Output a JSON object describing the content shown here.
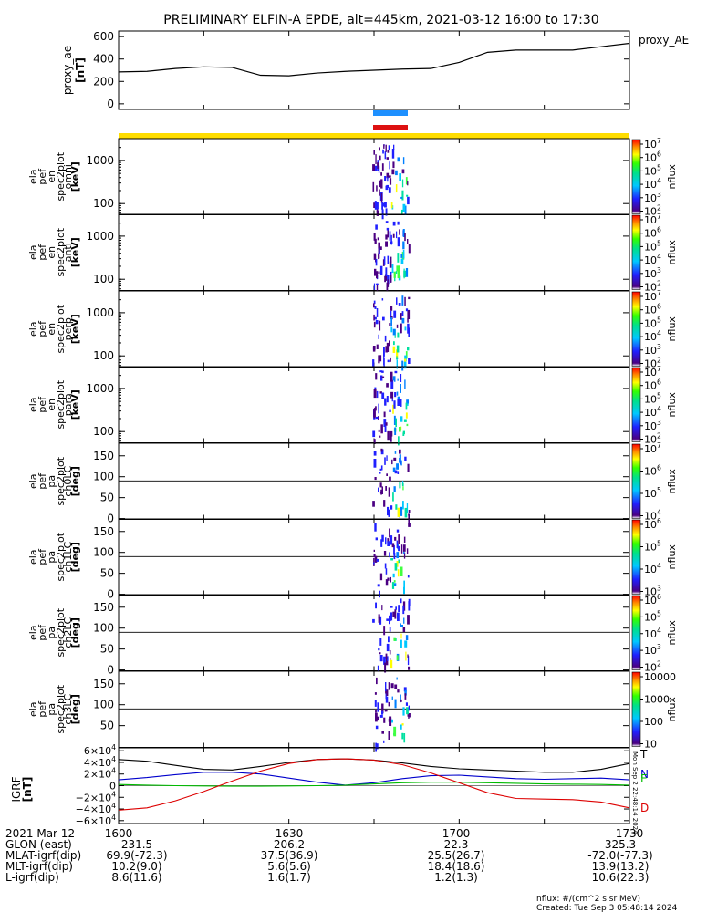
{
  "title": "PRELIMINARY ELFIN-A EPDE, alt=445km, 2021-03-12 16:00 to 17:30",
  "colors": {
    "blue_bar": "#1e90ff",
    "red_bar": "#dd1111",
    "yellow_bar": "#ffdd00",
    "bx": "#000000",
    "by": "#0000cc",
    "bz": "#00bb00",
    "bd": "#dd0000"
  },
  "chart_data": [
    {
      "type": "line",
      "name": "proxy_ae",
      "ylabel": [
        "proxy_ae",
        "[nT]"
      ],
      "yticks": [
        "600",
        "400",
        "200",
        "0"
      ],
      "ylim": [
        -50,
        650
      ],
      "legend": "proxy_AE",
      "x": [
        0,
        5,
        10,
        15,
        20,
        25,
        30,
        35,
        40,
        45,
        50,
        55,
        60,
        65,
        70,
        75,
        80,
        85,
        90
      ],
      "values": [
        285,
        290,
        315,
        330,
        325,
        255,
        250,
        275,
        290,
        300,
        310,
        315,
        370,
        460,
        480,
        480,
        480,
        510,
        540
      ]
    },
    {
      "type": "heatmap",
      "name": "en omni",
      "ylabel": [
        "ela",
        "pef",
        "en",
        "spec2plot",
        "omni",
        "[keV]"
      ],
      "yticks": [
        "1000",
        "100"
      ],
      "zlabel": "nflux",
      "zticks": [
        "10^7",
        "10^6",
        "10^5",
        "10^4",
        "10^3",
        "10^2"
      ]
    },
    {
      "type": "heatmap",
      "name": "en anti",
      "ylabel": [
        "ela",
        "pef",
        "en",
        "spec2plot",
        "anti",
        "[keV]"
      ],
      "yticks": [
        "1000",
        "100"
      ],
      "zlabel": "nflux",
      "zticks": [
        "10^7",
        "10^6",
        "10^5",
        "10^4",
        "10^3",
        "10^2"
      ]
    },
    {
      "type": "heatmap",
      "name": "en perp",
      "ylabel": [
        "ela",
        "pef",
        "en",
        "spec2plot",
        "perp",
        "[keV]"
      ],
      "yticks": [
        "1000",
        "100"
      ],
      "zlabel": "nflux",
      "zticks": [
        "10^7",
        "10^6",
        "10^5",
        "10^4",
        "10^3",
        "10^2"
      ]
    },
    {
      "type": "heatmap",
      "name": "en para",
      "ylabel": [
        "ela",
        "pef",
        "en",
        "spec2plot",
        "para",
        "[keV]"
      ],
      "yticks": [
        "1000",
        "100"
      ],
      "zlabel": "nflux",
      "zticks": [
        "10^7",
        "10^6",
        "10^5",
        "10^4",
        "10^3",
        "10^2"
      ]
    },
    {
      "type": "heatmap",
      "name": "pa ch0LC",
      "ylabel": [
        "ela",
        "pef",
        "pa",
        "spec2plot",
        "ch0LC",
        "[deg]"
      ],
      "yticks": [
        "150",
        "100",
        "50",
        "0"
      ],
      "zlabel": "nflux",
      "zticks": [
        "10^7",
        "10^6",
        "10^5",
        "10^4"
      ]
    },
    {
      "type": "heatmap",
      "name": "pa ch1LC",
      "ylabel": [
        "ela",
        "pef",
        "pa",
        "spec2plot",
        "ch1LC",
        "[deg]"
      ],
      "yticks": [
        "150",
        "100",
        "50",
        "0"
      ],
      "zlabel": "nflux",
      "zticks": [
        "10^6",
        "10^5",
        "10^4",
        "10^3"
      ]
    },
    {
      "type": "heatmap",
      "name": "pa ch2LC",
      "ylabel": [
        "ela",
        "pef",
        "pa",
        "spec2plot",
        "ch2LC",
        "[deg]"
      ],
      "yticks": [
        "150",
        "100",
        "50",
        "0"
      ],
      "zlabel": "nflux",
      "zticks": [
        "10^6",
        "10^5",
        "10^4",
        "10^3",
        "10^2"
      ]
    },
    {
      "type": "heatmap",
      "name": "pa ch3LC",
      "ylabel": [
        "ela",
        "pef",
        "pa",
        "spec2plot",
        "ch3LC",
        "[deg]"
      ],
      "yticks": [
        "150",
        "100",
        "50"
      ],
      "zlabel": "nflux",
      "zticks": [
        "10000",
        "1000",
        "100",
        "10"
      ]
    },
    {
      "type": "line",
      "name": "igrf",
      "ylabel": [
        "IGRF",
        "[nT]"
      ],
      "yticks": [
        "6×10^4",
        "4×10^4",
        "2×10^4",
        "0",
        "−2×10^4",
        "−4×10^4",
        "−6×10^4"
      ],
      "ylim": [
        -65000,
        65000
      ],
      "legend": [
        "T",
        "N",
        "E",
        "D"
      ],
      "x": [
        0,
        5,
        10,
        15,
        20,
        25,
        30,
        35,
        40,
        45,
        50,
        55,
        60,
        65,
        70,
        75,
        80,
        85,
        90
      ],
      "series": [
        {
          "name": "T",
          "values": [
            45000,
            42000,
            35000,
            28000,
            27000,
            33000,
            40000,
            45000,
            46000,
            44000,
            39000,
            33000,
            29000,
            27000,
            25000,
            23000,
            23000,
            28000,
            38000
          ]
        },
        {
          "name": "N",
          "values": [
            10000,
            14000,
            19000,
            23000,
            23000,
            20000,
            13000,
            6000,
            1000,
            5000,
            12000,
            17000,
            18000,
            15000,
            12000,
            11000,
            12000,
            13000,
            10000
          ]
        },
        {
          "name": "E",
          "values": [
            2000,
            1000,
            0,
            -500,
            -1000,
            -1000,
            -500,
            0,
            1000,
            3000,
            5000,
            6000,
            6000,
            5000,
            4000,
            3000,
            2500,
            2000,
            1000
          ]
        },
        {
          "name": "D",
          "values": [
            -42000,
            -38000,
            -26000,
            -10000,
            8000,
            25000,
            38000,
            45000,
            46000,
            44000,
            36000,
            22000,
            5000,
            -12000,
            -22000,
            -23000,
            -24000,
            -28000,
            -38000
          ]
        }
      ]
    }
  ],
  "xaxis": {
    "ticks": [
      "1600",
      "1630",
      "1700",
      "1730"
    ],
    "rows": [
      {
        "label": "2021 Mar 12",
        "values": [
          "1600",
          "1630",
          "1700",
          "1730"
        ]
      },
      {
        "label": "GLON (east)",
        "values": [
          "231.5",
          "206.2",
          "22.3",
          "325.3"
        ]
      },
      {
        "label": "MLAT-igrf(dip)",
        "values": [
          "69.9(-72.3)",
          "37.5(36.9)",
          "25.5(26.7)",
          "-72.0(-77.3)"
        ]
      },
      {
        "label": "MLT-igrf(dip)",
        "values": [
          "10.2(9.0)",
          "5.6(5.6)",
          "18.4(18.6)",
          "13.9(13.2)"
        ]
      },
      {
        "label": "L-igrf(dip)",
        "values": [
          "8.6(11.6)",
          "1.6(1.7)",
          "1.2(1.3)",
          "10.6(22.3)"
        ]
      }
    ]
  },
  "footer": {
    "units": "nflux: #/(cm^2 s sr MeV)",
    "created": "Created: Tue Sep  3 05:48:14 2024",
    "sidebar": "Mon Sep  2 22:48:14 2024"
  }
}
